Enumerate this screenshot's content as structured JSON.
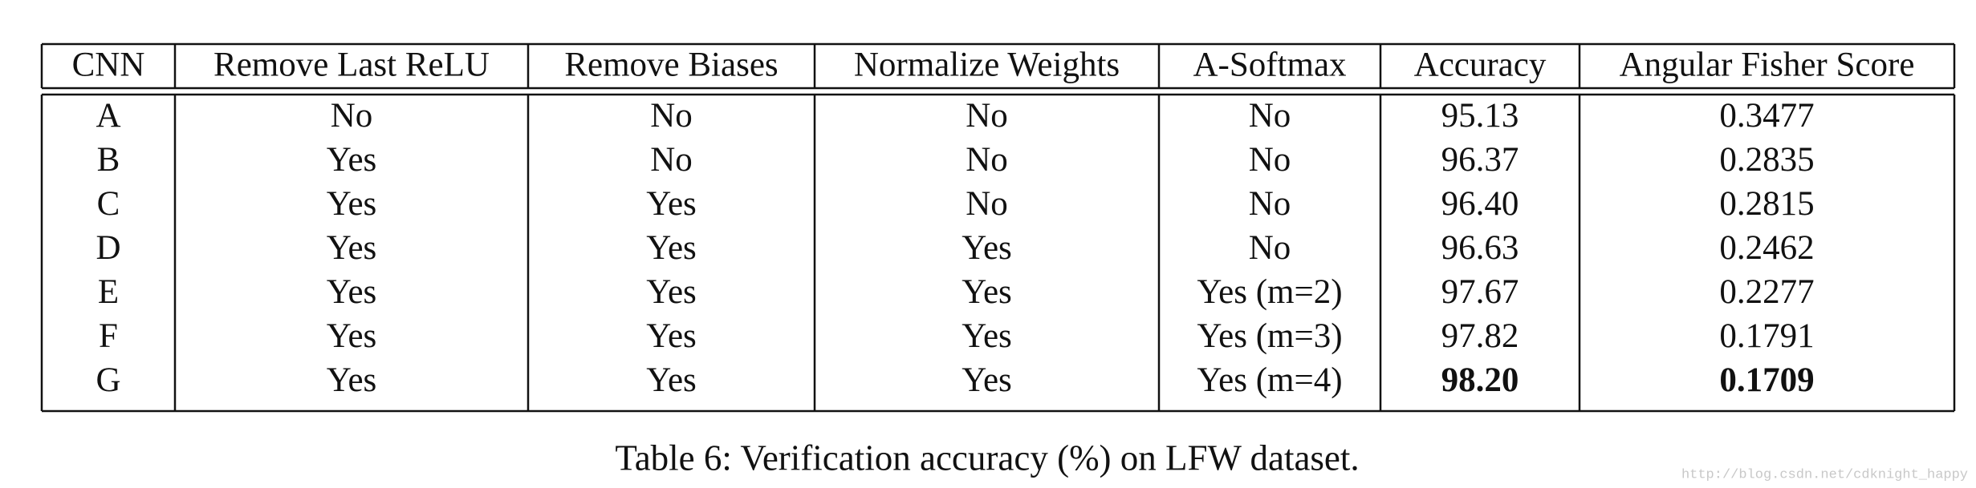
{
  "table": {
    "header": [
      "CNN",
      "Remove Last ReLU",
      "Remove Biases",
      "Normalize Weights",
      "A-Softmax",
      "Accuracy",
      "Angular Fisher Score"
    ],
    "rows": [
      [
        "A",
        "No",
        "No",
        "No",
        "No",
        "95.13",
        "0.3477"
      ],
      [
        "B",
        "Yes",
        "No",
        "No",
        "No",
        "96.37",
        "0.2835"
      ],
      [
        "C",
        "Yes",
        "Yes",
        "No",
        "No",
        "96.40",
        "0.2815"
      ],
      [
        "D",
        "Yes",
        "Yes",
        "Yes",
        "No",
        "96.63",
        "0.2462"
      ],
      [
        "E",
        "Yes",
        "Yes",
        "Yes",
        "Yes (m=2)",
        "97.67",
        "0.2277"
      ],
      [
        "F",
        "Yes",
        "Yes",
        "Yes",
        "Yes (m=3)",
        "97.82",
        "0.1791"
      ],
      [
        "G",
        "Yes",
        "Yes",
        "Yes",
        "Yes (m=4)",
        "98.20",
        "0.1709"
      ]
    ]
  },
  "caption": "Table 6: Verification accuracy (%) on LFW dataset.",
  "watermark": "http://blog.csdn.net/cdknight_happy"
}
